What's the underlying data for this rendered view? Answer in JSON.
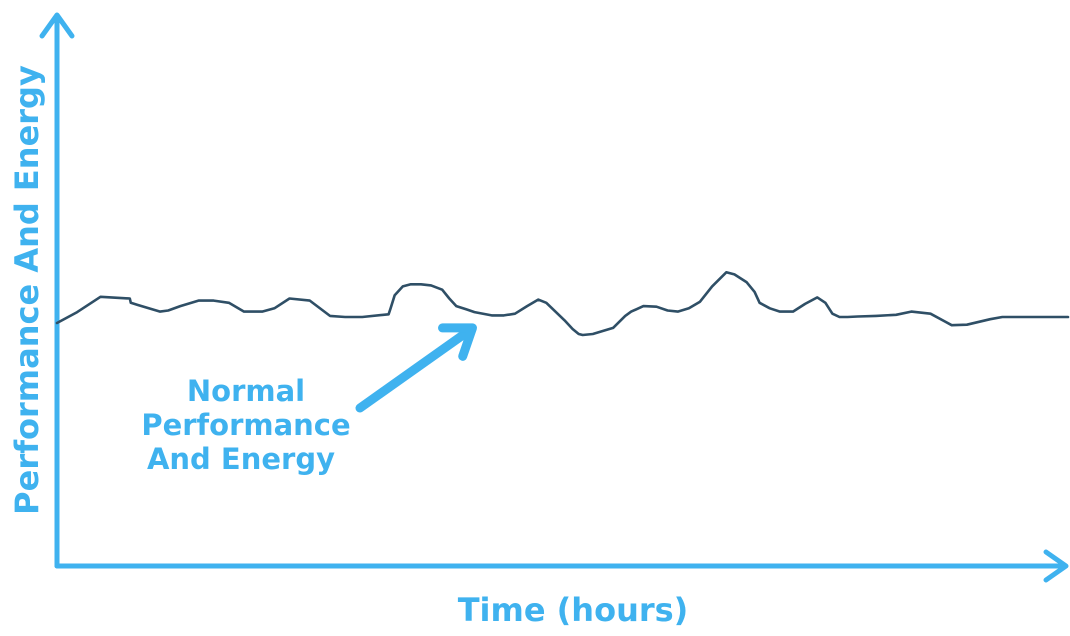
{
  "chart_data": {
    "type": "line",
    "title": "",
    "xlabel": "Time (hours)",
    "ylabel": "Performance And Energy",
    "grid": false,
    "legend": "none",
    "x_ticks": "none",
    "y_ticks": "none",
    "xlim": [
      0,
      100
    ],
    "ylim": [
      0,
      100
    ],
    "series": [
      {
        "color": "#2f4f66",
        "x": [
          0,
          2,
          4.3,
          7.2,
          7.3,
          8,
          10.2,
          11,
          12.2,
          14,
          15.5,
          17,
          18.5,
          20.3,
          21.5,
          23,
          25,
          27,
          28.5,
          30.2,
          32.8,
          33,
          33.4,
          34.2,
          35,
          36,
          37,
          38.1,
          38.8,
          39.5,
          40.5,
          41.3,
          43,
          44.2,
          45.3,
          46.5,
          47.6,
          48.4,
          50.2,
          51,
          51.6,
          52,
          53,
          55,
          56.2,
          56.8,
          58,
          59.3,
          60.4,
          61.4,
          62.5,
          63.6,
          64.8,
          66.2,
          67,
          68.2,
          69,
          69.5,
          70.5,
          71.5,
          72.8,
          74,
          75.2,
          76,
          76.7,
          77.4,
          78.2,
          79.2,
          81,
          83,
          84.5,
          86.4,
          87.8,
          88.5,
          90,
          92.3,
          93.5,
          95,
          96.7,
          98.5,
          100
        ],
        "y": [
          44.5,
          46.5,
          49.3,
          49,
          48.2,
          47.8,
          46.6,
          46.8,
          47.6,
          48.6,
          48.6,
          48.2,
          46.6,
          46.6,
          47.2,
          49,
          48.6,
          45.8,
          45.6,
          45.6,
          46.1,
          47.2,
          49.6,
          51.2,
          51.6,
          51.6,
          51.4,
          50.6,
          49,
          47.6,
          47,
          46.5,
          45.9,
          45.9,
          46.2,
          47.6,
          48.8,
          48.2,
          45,
          43.4,
          42.5,
          42.3,
          42.5,
          43.6,
          45.8,
          46.6,
          47.6,
          47.5,
          46.8,
          46.6,
          47.2,
          48.4,
          51.2,
          53.8,
          53.4,
          52,
          50.2,
          48.2,
          47.2,
          46.6,
          46.6,
          48,
          49.2,
          48.2,
          46.2,
          45.6,
          45.6,
          45.7,
          45.8,
          46,
          46.6,
          46.2,
          44.8,
          44.1,
          44.2,
          45.2,
          45.6,
          45.6,
          45.6,
          45.6,
          45.6
        ]
      }
    ],
    "annotations": [
      {
        "text_lines": [
          "Normal",
          "Performance",
          "And Energy"
        ],
        "arrow_to": {
          "x": 41.1,
          "y": 43.6
        }
      }
    ]
  },
  "colors": {
    "axis": "#3fb2ef",
    "line": "#2f4f66",
    "text": "#3fb2ef",
    "background": "#ffffff"
  }
}
